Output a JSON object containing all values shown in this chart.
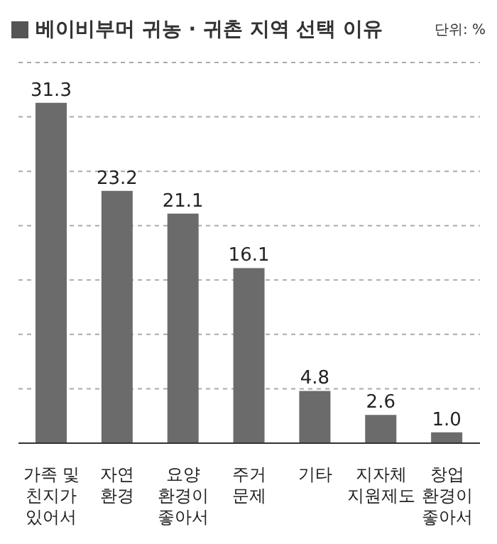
{
  "chart_data": {
    "type": "bar",
    "title": "베이비부머 귀농 · 귀촌 지역 선택 이유",
    "annotations": [
      "단위: %"
    ],
    "categories": [
      "가족 및 친지가 있어서",
      "자연 환경",
      "요양 환경이 좋아서",
      "주거 문제",
      "기타",
      "지자체 지원제도",
      "창업 환경이 좋아서"
    ],
    "values": [
      31.3,
      23.2,
      21.1,
      16.1,
      4.8,
      2.6,
      1.0
    ],
    "value_labels": [
      "31.3",
      "23.2",
      "21.1",
      "16.1",
      "4.8",
      "2.6",
      "1.0"
    ],
    "color": "#6b6b6b",
    "grid": "y",
    "tick_labels": "x",
    "ylim": [
      0,
      35
    ]
  }
}
